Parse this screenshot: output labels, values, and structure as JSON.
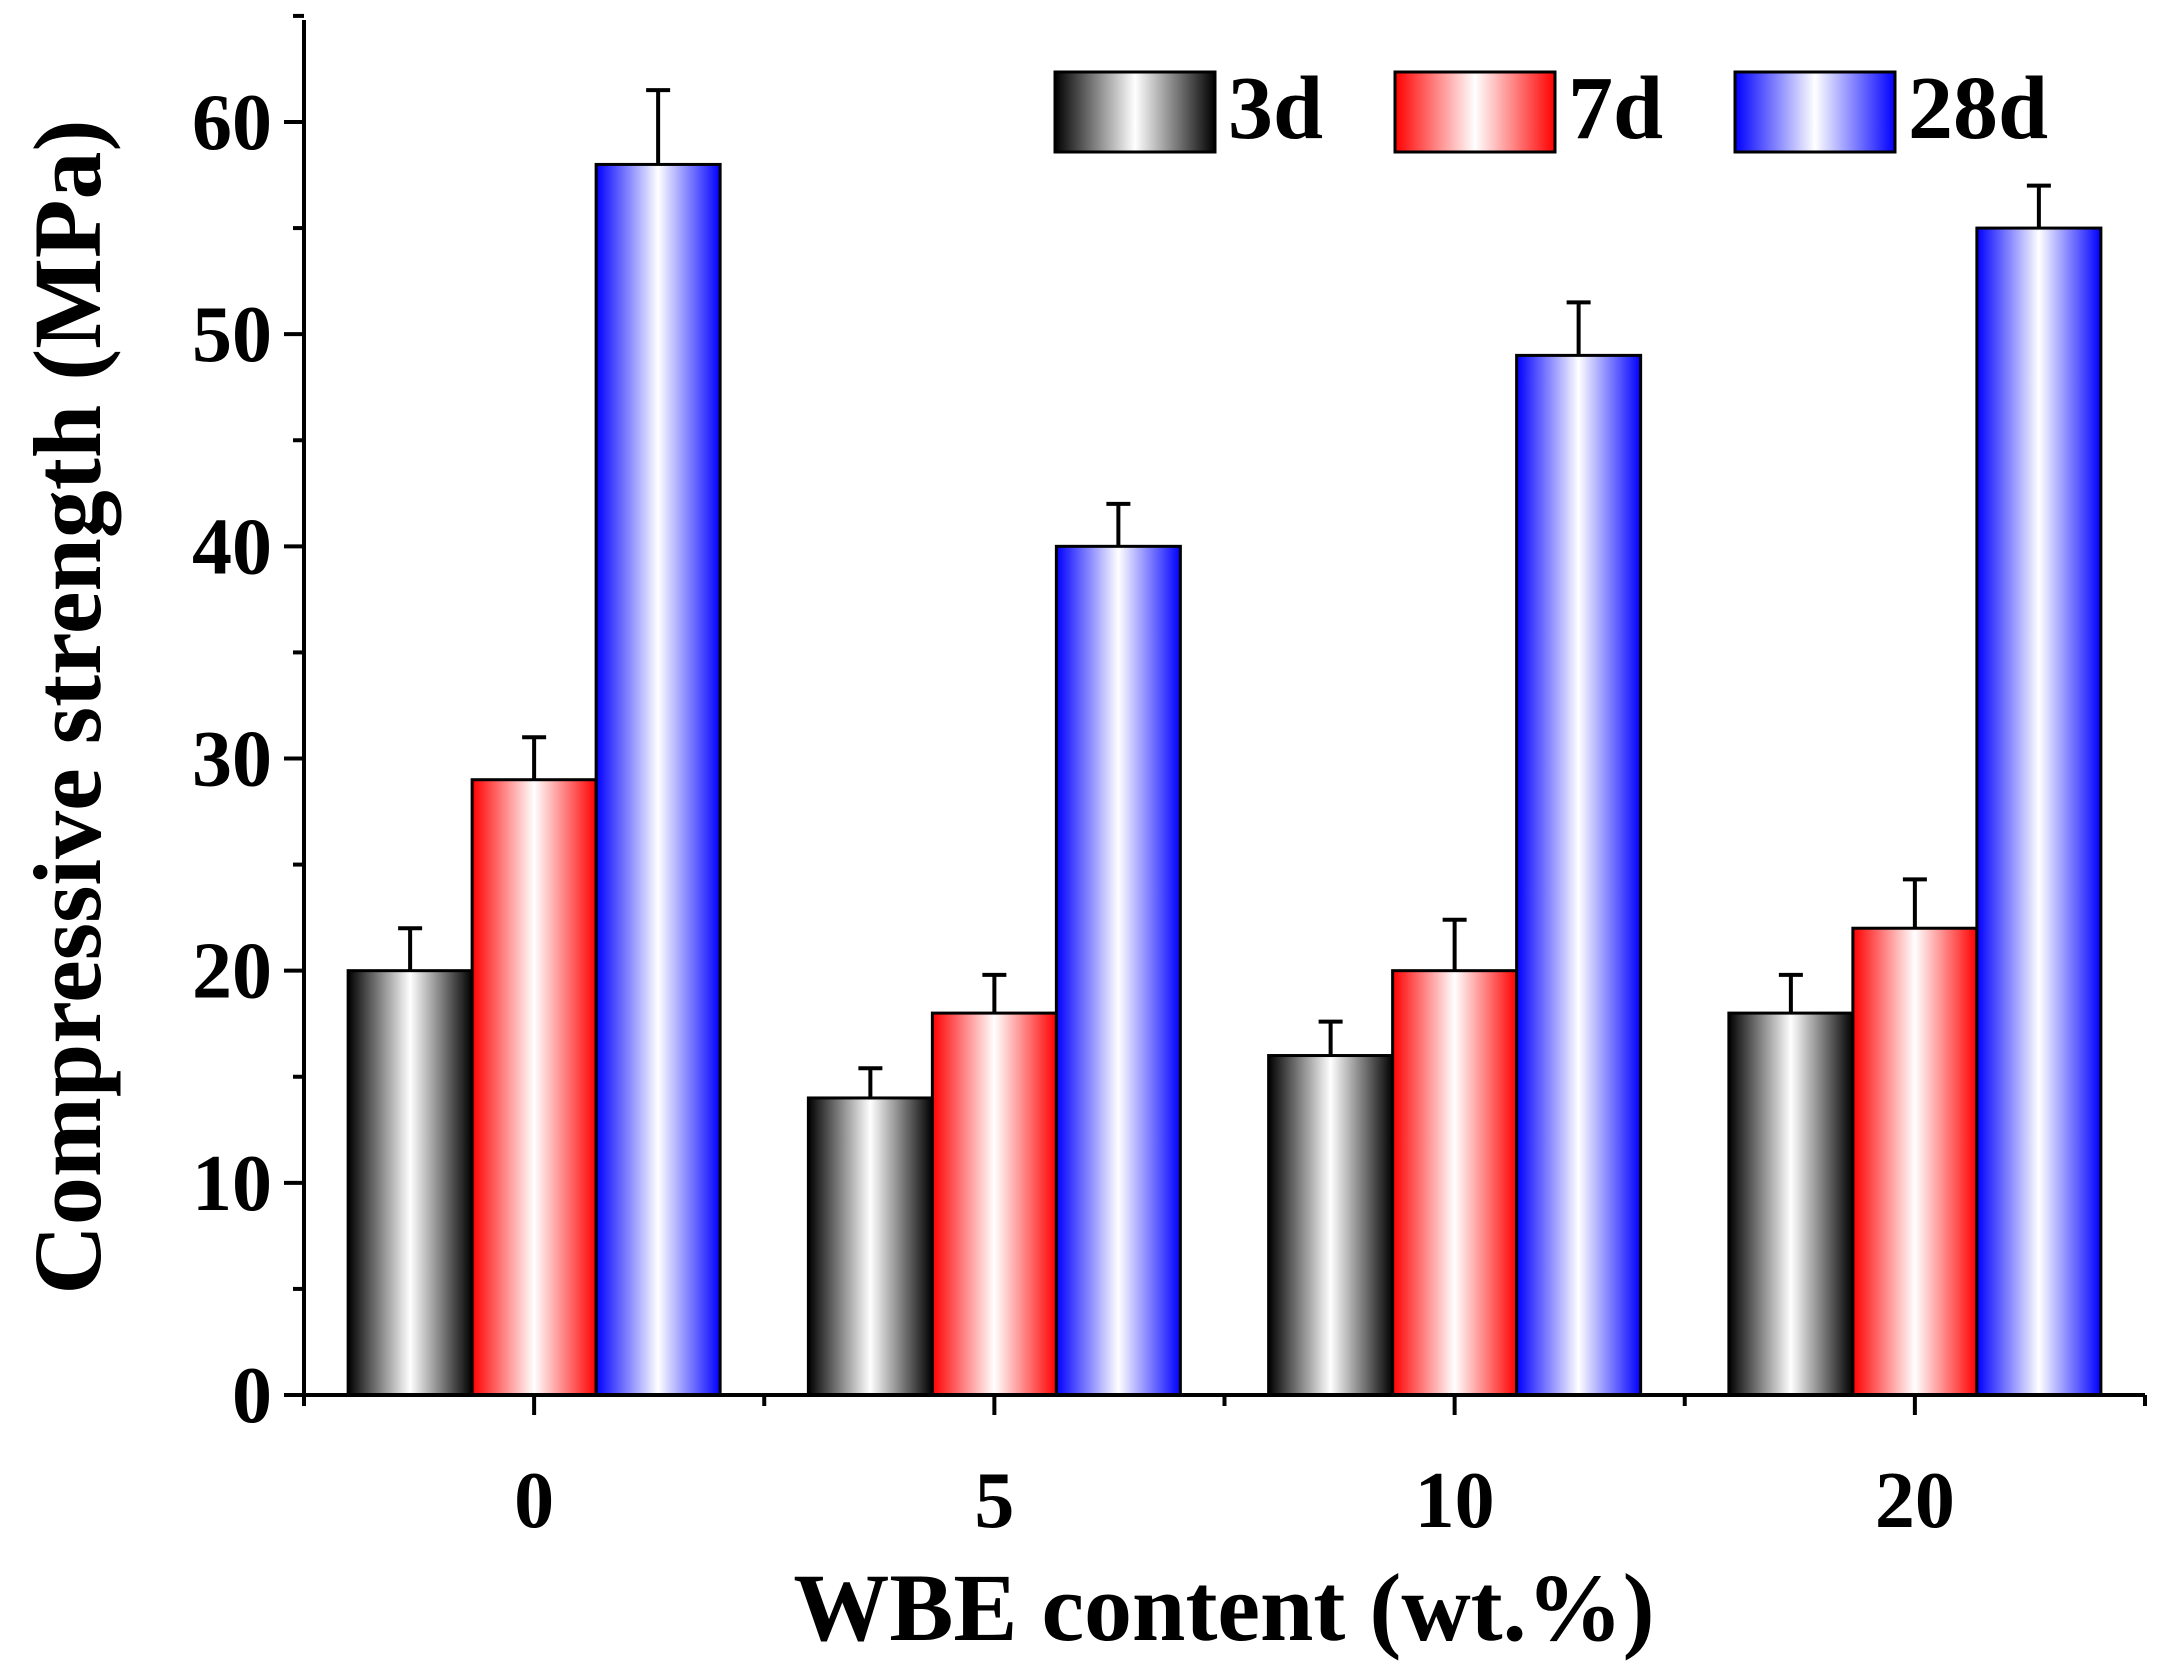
{
  "chart_data": {
    "type": "bar",
    "title": "",
    "xlabel": "WBE content (wt.%)",
    "ylabel": "Compressive strength (MPa)",
    "categories": [
      "0",
      "5",
      "10",
      "20"
    ],
    "ylim": [
      0,
      65
    ],
    "yticks": [
      0,
      10,
      20,
      30,
      40,
      50,
      60
    ],
    "legend_position": "top-right",
    "series": [
      {
        "name": "3d",
        "values": [
          20,
          14,
          16,
          18
        ],
        "errors": [
          2.0,
          1.4,
          1.6,
          1.8
        ],
        "color": "#000000"
      },
      {
        "name": "7d",
        "values": [
          29,
          18,
          20,
          22
        ],
        "errors": [
          2.0,
          1.8,
          2.4,
          2.3
        ],
        "color": "#ff0000"
      },
      {
        "name": "28d",
        "values": [
          58,
          40,
          49,
          55
        ],
        "errors": [
          3.5,
          2.0,
          2.5,
          2.0
        ],
        "color": "#0000ff"
      }
    ]
  }
}
